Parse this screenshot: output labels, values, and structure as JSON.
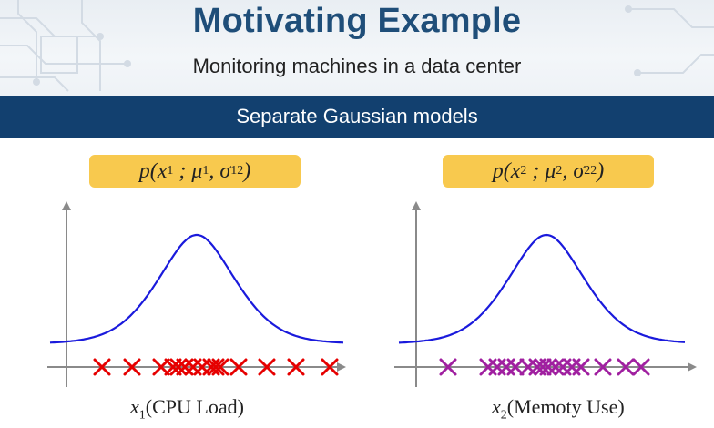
{
  "header": {
    "title": "Motivating Example",
    "subtitle": "Monitoring machines in a data center"
  },
  "banner": {
    "text": "Separate Gaussian models"
  },
  "plots": [
    {
      "formula": {
        "func": "p(",
        "var": "x",
        "var_sub": "1",
        "mu_sub": "1",
        "sigma_sub": "1",
        "sigma_sup": "2"
      },
      "axis_label": {
        "var": "x",
        "sub": "1",
        "text": "(CPU Load)"
      },
      "marker_color": "#e60000",
      "curve_color": "#1a1adc"
    },
    {
      "formula": {
        "func": "p(",
        "var": "x",
        "var_sub": "2",
        "mu_sub": "2",
        "sigma_sub": "2",
        "sigma_sup": "2"
      },
      "axis_label": {
        "var": "x",
        "sub": "2",
        "text": "(Memoty Use)"
      },
      "marker_color": "#a020a0",
      "curve_color": "#1a1adc"
    }
  ],
  "colors": {
    "title": "#1f4e79",
    "banner": "#12406f",
    "formula_box": "#f8c94e",
    "axis": "#8a8a8a"
  }
}
